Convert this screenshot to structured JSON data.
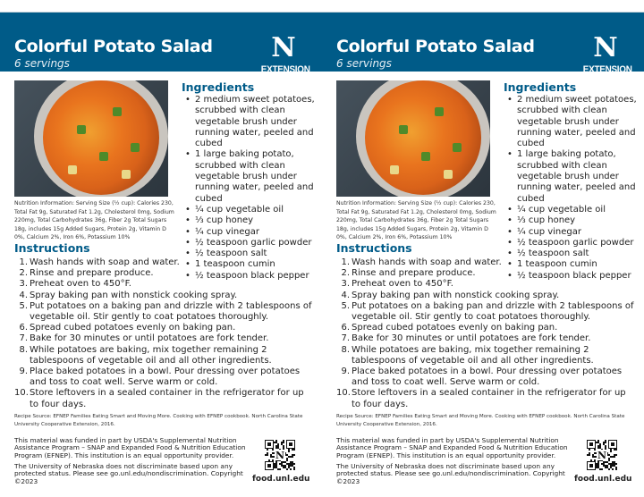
{
  "card": {
    "title": "Colorful Potato Salad",
    "servings": "6 servings",
    "logo": {
      "letter": "N",
      "text": "EXTENSION"
    },
    "brand_color": "#005b88",
    "nutrition": "Nutrition Information: Serving Size (½ cup): Calories 230, Total Fat 9g, Saturated Fat 1.2g, Cholesterol 0mg, Sodium 220mg, Total Carbohydrates 36g, Fiber 2g Total Sugars 18g, includes 15g Added Sugars, Protein 2g, Vitamin D 0%, Calcium 2%, Iron 6%, Potassium 10%",
    "ingredients_heading": "Ingredients",
    "ingredients": [
      "2 medium sweet potatoes, scrubbed with clean vegetable brush under running water, peeled and cubed",
      "1 large baking potato, scrubbed with clean vegetable brush under running water, peeled and cubed",
      "¼ cup vegetable oil",
      "⅓ cup honey",
      "¼ cup vinegar",
      "½ teaspoon garlic powder",
      "½ teaspoon salt",
      "1 teaspoon cumin",
      "½ teaspoon black pepper"
    ],
    "instructions_heading": "Instructions",
    "instructions": [
      "Wash hands with soap and water.",
      "Rinse and prepare produce.",
      "Preheat oven to 450°F.",
      "Spray baking pan with nonstick cooking spray.",
      "Put potatoes on a baking pan and drizzle with 2 tablespoons of vegetable oil. Stir gently to coat potatoes thoroughly.",
      "Spread cubed potatoes evenly on baking pan.",
      "Bake for 30 minutes or until potatoes are fork tender.",
      "While potatoes are baking, mix together remaining 2 tablespoons of vegetable oil and all other ingredients.",
      "Place baked potatoes in a bowl. Pour dressing over potatoes and toss to coat well. Serve warm or cold.",
      "Store leftovers in a sealed container in the refrigerator for up to four days."
    ],
    "recipe_source": "Recipe Source: EFNEP Families Eating Smart and Moving More. Cooking with EFNEP cookbook. North Carolina State University Cooperative Extension, 2016.",
    "funding": "This material was funded in part by USDA's Supplemental Nutrition Assistance Program – SNAP and Expanded Food & Nutrition Education Program (EFNEP). This institution is an equal opportunity provider.",
    "disclaimer": "The University of Nebraska does not discriminate based upon any protected status. Please see go.unl.edu/nondiscrimination. Copyright ©2023",
    "website": "food.unl.edu"
  }
}
